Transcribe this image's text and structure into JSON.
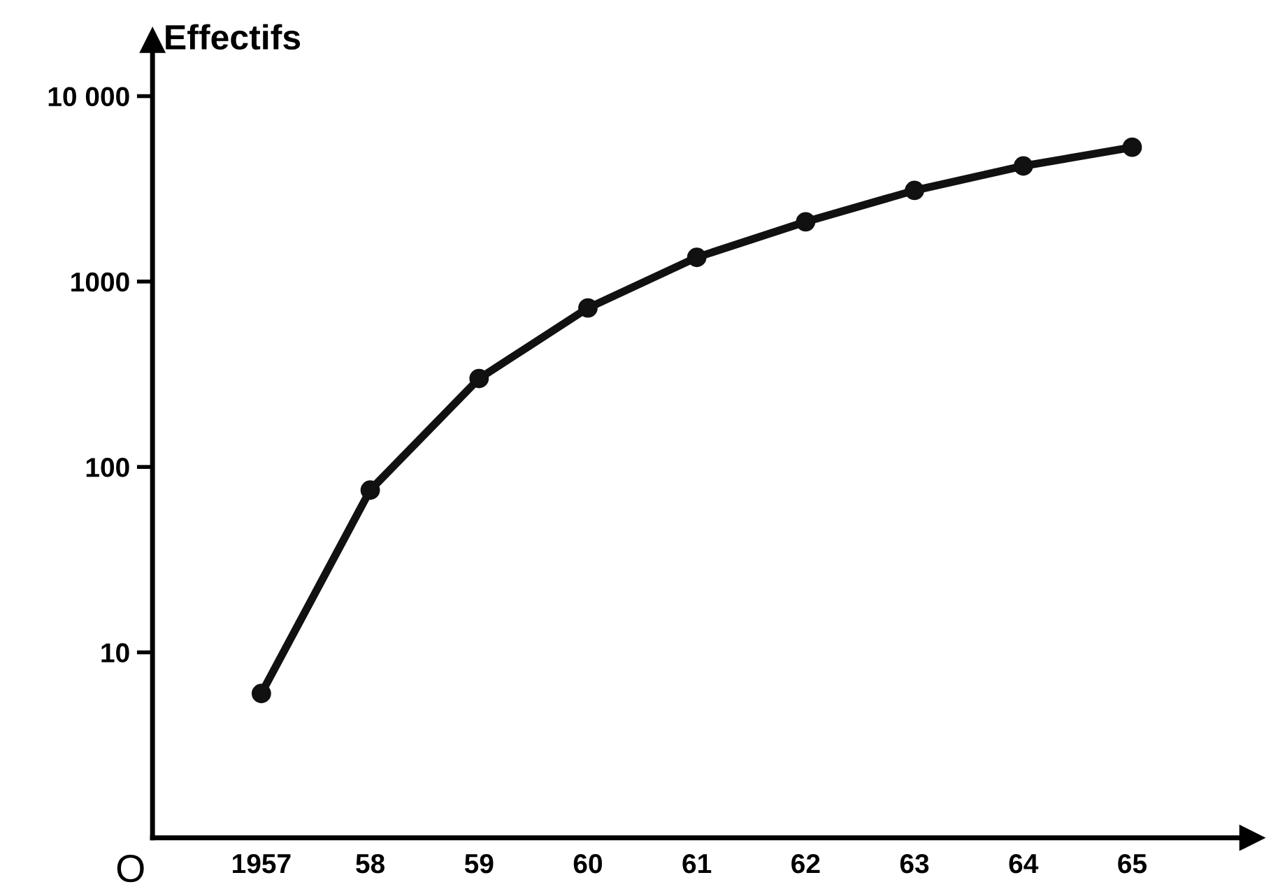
{
  "chart_data": {
    "type": "line",
    "ylabel": "Effectifs",
    "x": [
      1957,
      1958,
      1959,
      1960,
      1961,
      1962,
      1963,
      1964,
      1965
    ],
    "values": [
      6,
      75,
      300,
      720,
      1350,
      2100,
      3100,
      4200,
      5300
    ],
    "color": "#111111",
    "log": "y",
    "xlim": [
      1956,
      1966.1
    ],
    "ylim": [
      1,
      20000
    ],
    "xticks": [
      1957,
      {
        "value": 1958,
        "label": "58"
      },
      {
        "value": 1959,
        "label": "59"
      },
      {
        "value": 1960,
        "label": "60"
      },
      {
        "value": 1961,
        "label": "61"
      },
      {
        "value": 1962,
        "label": "62"
      },
      {
        "value": 1963,
        "label": "63"
      },
      {
        "value": 1964,
        "label": "64"
      },
      {
        "value": 1965,
        "label": "65"
      }
    ],
    "yticks": [
      10,
      100,
      1000,
      {
        "value": 10000,
        "label": "10 000"
      }
    ],
    "annotations": [
      "O"
    ],
    "marker": "circle",
    "line_style": "solid",
    "grid": false,
    "legend": false
  }
}
